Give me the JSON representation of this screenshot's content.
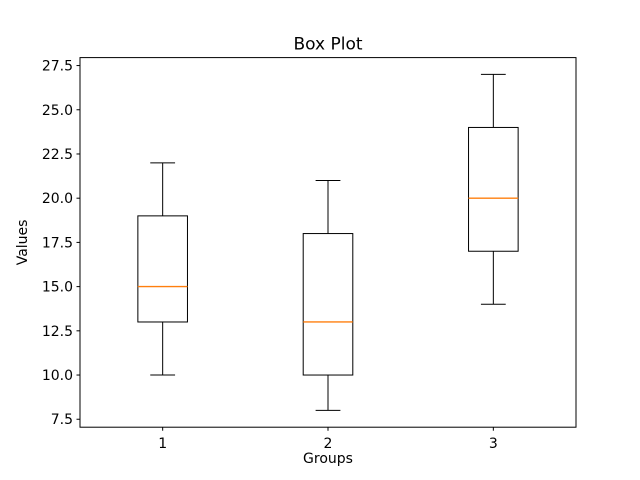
{
  "chart_data": {
    "type": "boxplot",
    "title": "Box Plot",
    "xlabel": "Groups",
    "ylabel": "Values",
    "categories": [
      "1",
      "2",
      "3"
    ],
    "series": [
      {
        "name": "1",
        "whisker_low": 10,
        "q1": 13,
        "median": 15,
        "q3": 19,
        "whisker_high": 22
      },
      {
        "name": "2",
        "whisker_low": 8,
        "q1": 10,
        "median": 13,
        "q3": 18,
        "whisker_high": 21
      },
      {
        "name": "3",
        "whisker_low": 14,
        "q1": 17,
        "median": 20,
        "q3": 24,
        "whisker_high": 27
      }
    ],
    "positions": [
      1,
      2,
      3
    ],
    "yticks": [
      "7.5",
      "10.0",
      "12.5",
      "15.0",
      "17.5",
      "20.0",
      "22.5",
      "25.0",
      "27.5"
    ],
    "ytick_values": [
      7.5,
      10.0,
      12.5,
      15.0,
      17.5,
      20.0,
      22.5,
      25.0,
      27.5
    ],
    "xlim": [
      0.5,
      3.5
    ],
    "ylim": [
      7.05,
      27.95
    ],
    "grid": false,
    "legend": "none",
    "colors": {
      "box_line": "#000000",
      "median_line": "#ff7f0e",
      "background": "#ffffff",
      "spine": "#000000"
    }
  }
}
